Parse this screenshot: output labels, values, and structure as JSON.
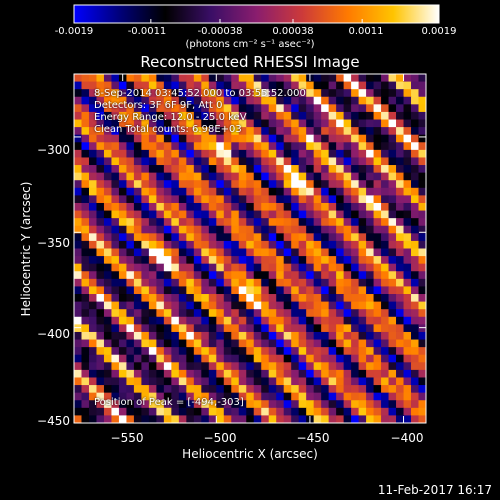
{
  "colorbar": {
    "ticks": [
      "-0.0019",
      "-0.0011",
      "-0.00038",
      "0.00038",
      "0.0011",
      "0.0019"
    ],
    "tick_values": [
      -0.0019,
      -0.0011,
      -0.00038,
      0.00038,
      0.0011,
      0.0019
    ],
    "range": [
      -0.0019,
      0.0019
    ],
    "units": "(photons cm⁻² s⁻¹ asec⁻²)",
    "colormap": [
      "#0000ff",
      "#00007a",
      "#000000",
      "#3a0e66",
      "#8a1d6e",
      "#cc3a3a",
      "#ff7a00",
      "#ffc400",
      "#ffffff"
    ]
  },
  "chart_data": {
    "type": "heatmap",
    "title": "Reconstructed RHESSI Image",
    "xlabel": "Heliocentric X (arcsec)",
    "ylabel": "Heliocentric Y (arcsec)",
    "xlim": [
      -576,
      -388
    ],
    "ylim": [
      -450,
      -267
    ],
    "xticks": [
      -550,
      -500,
      -450,
      -400
    ],
    "xtick_labels": [
      "−550",
      "−500",
      "−450",
      "−400"
    ],
    "yticks": [
      -300,
      -350,
      -400,
      -450
    ],
    "ytick_labels": [
      "−300",
      "−350",
      "−400",
      "−450"
    ],
    "grid": false,
    "pattern": "diagonal stripes running lower-left to upper-right",
    "peak": [
      -494,
      -303
    ],
    "bright_spots": [
      [
        -494,
        -303
      ],
      [
        -440,
        -298
      ],
      [
        -413,
        -332
      ],
      [
        -530,
        -365
      ],
      [
        -483,
        -383
      ],
      [
        -456,
        -323
      ]
    ],
    "annotations": [
      "8-Sep-2014 03:45:52.000 to 03:55:52.000",
      "Detectors: 3F 6F 9F, Att 0",
      "Energy Range: 12.0 - 25.0 keV",
      "Clean    Total counts: 6.98E+03"
    ],
    "peak_label": "Position of Peak = [-494,-303]"
  },
  "footer": {
    "timestamp": "11-Feb-2017 16:17"
  }
}
